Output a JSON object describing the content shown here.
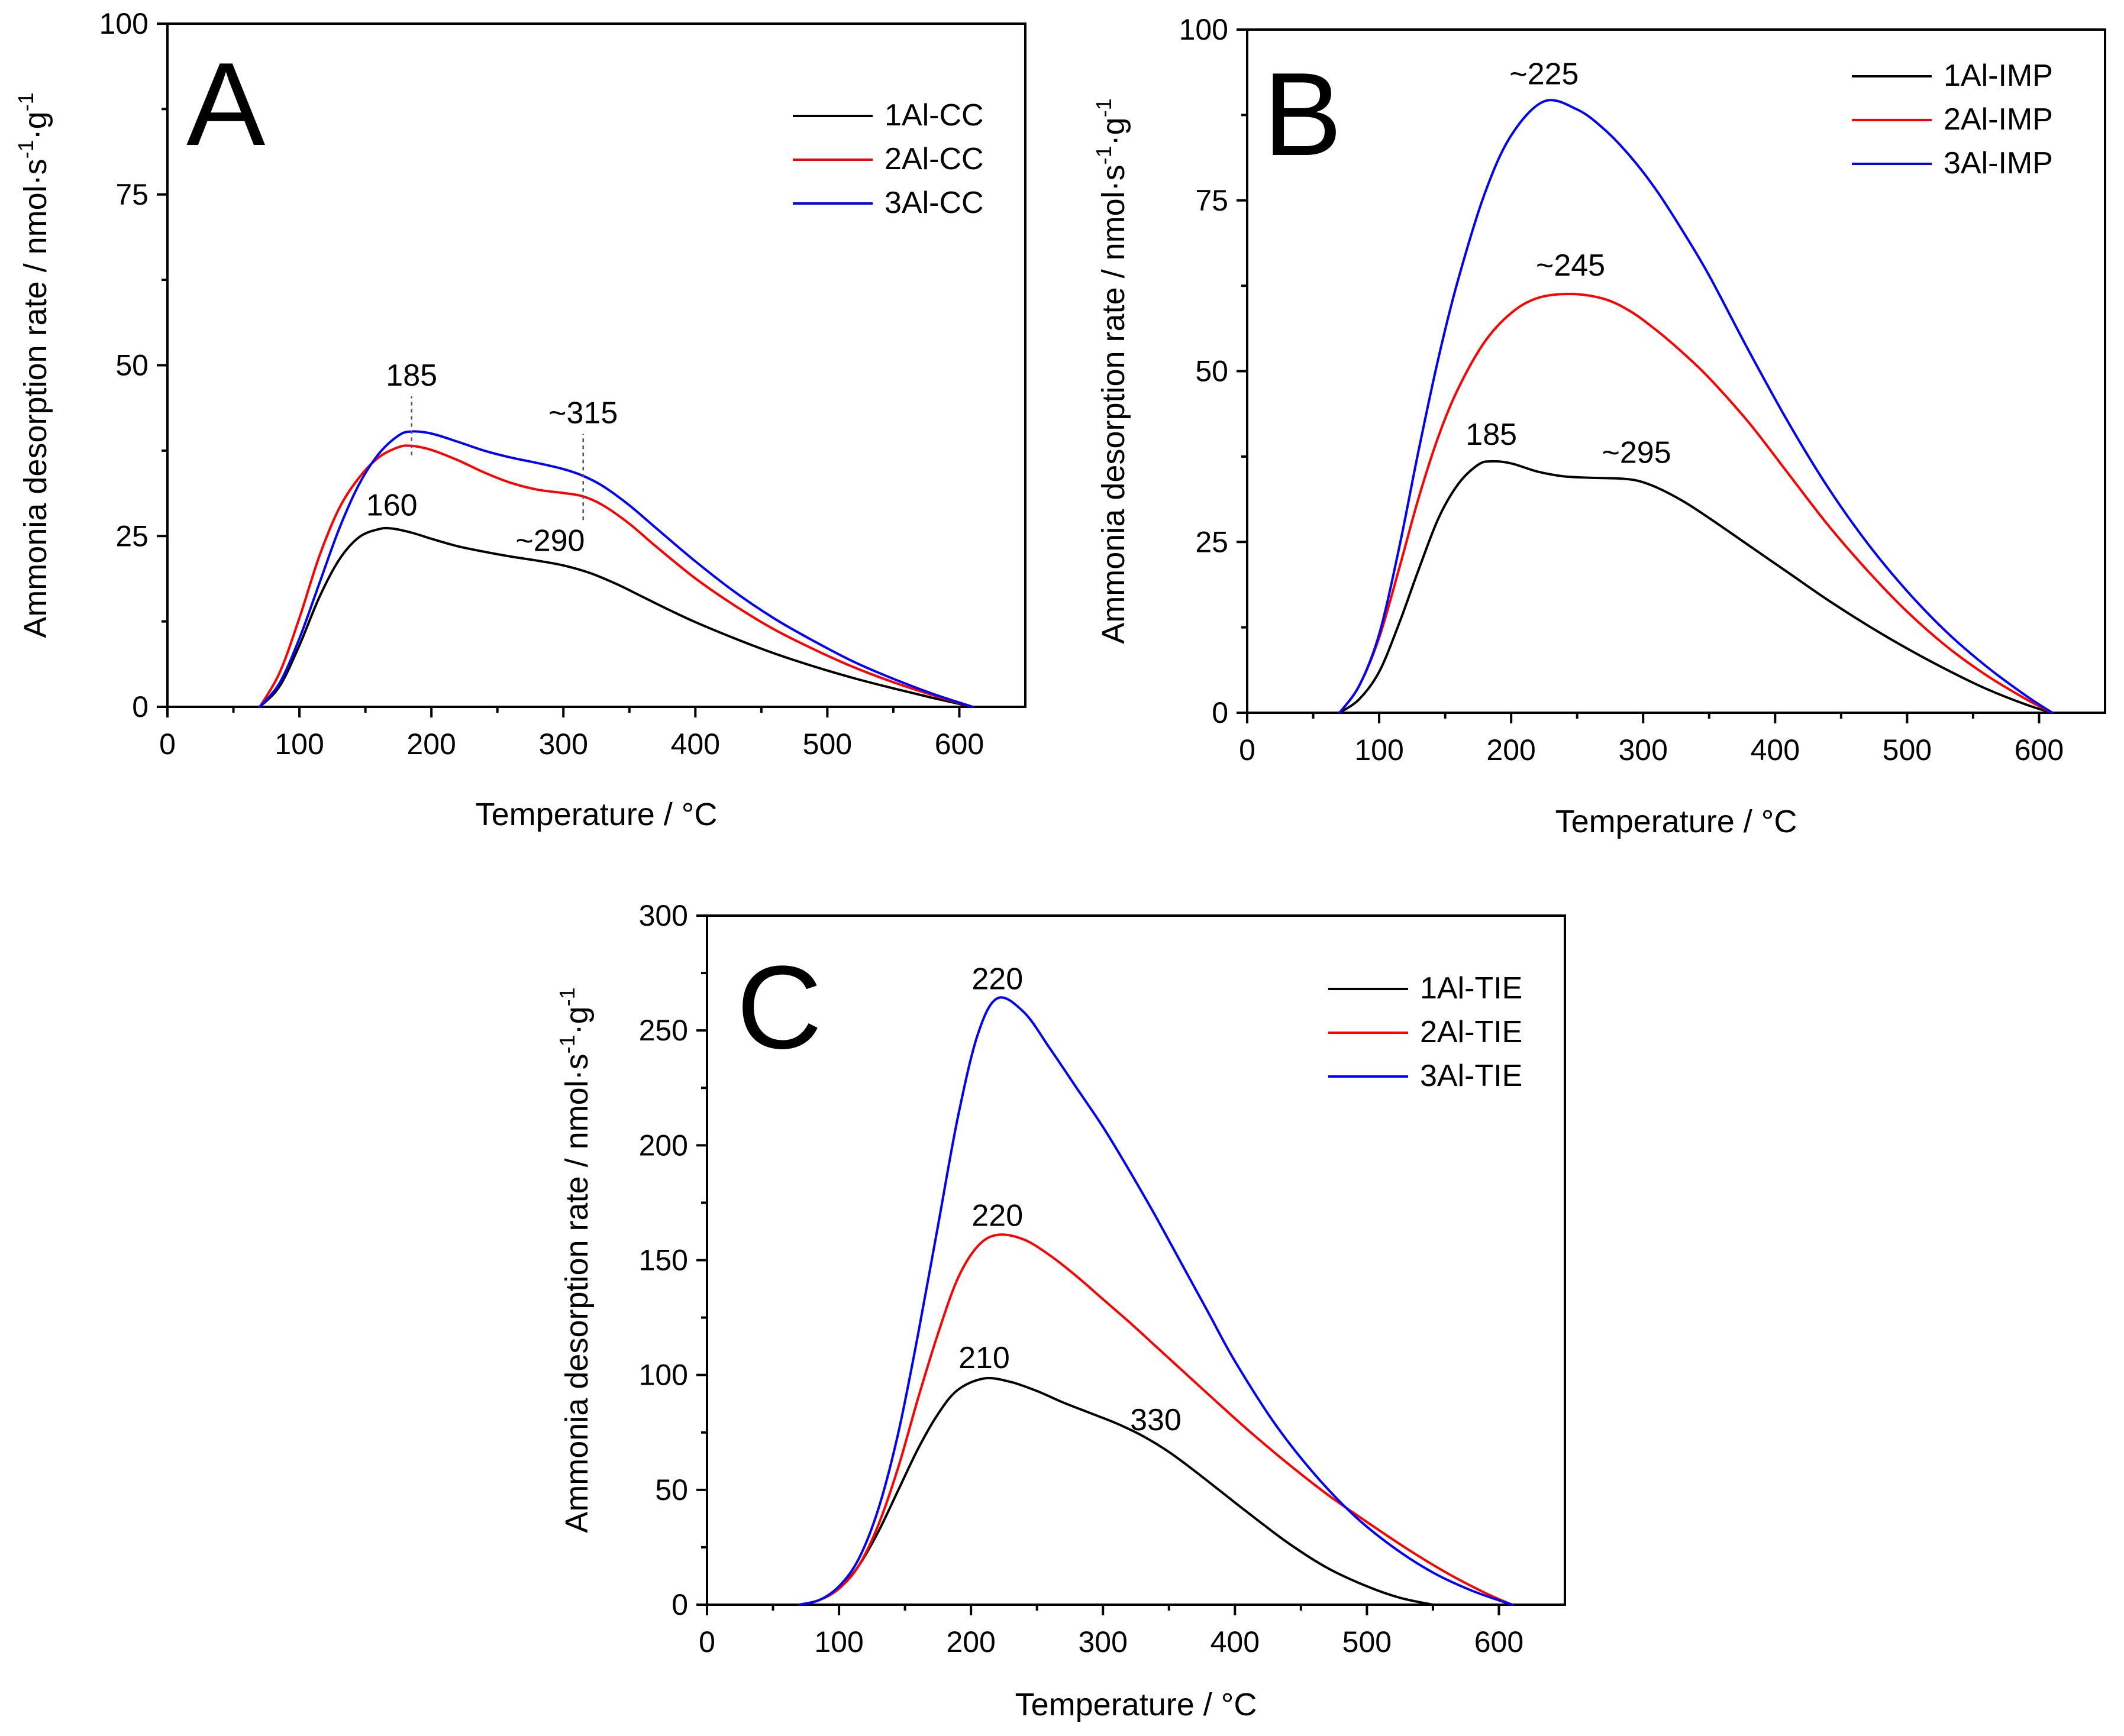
{
  "chart_data": [
    {
      "type": "line",
      "panel": "A",
      "xlabel": "Temperature / °C",
      "ylabel": "Ammonia desorption rate / nmol·s",
      "ylabel_unit": "·g",
      "ylabel_sup": "-1",
      "xlim": [
        0,
        650
      ],
      "ylim": [
        0,
        100
      ],
      "xticks": [
        0,
        100,
        200,
        300,
        400,
        500,
        600
      ],
      "yticks": [
        0,
        25,
        50,
        75,
        100
      ],
      "legend_position": "top-right",
      "series": [
        {
          "name": "1Al-CC",
          "color": "#000000",
          "x": [
            70,
            85,
            100,
            115,
            130,
            145,
            160,
            170,
            185,
            200,
            220,
            240,
            260,
            280,
            300,
            320,
            340,
            360,
            380,
            400,
            430,
            460,
            490,
            520,
            550,
            580,
            610
          ],
          "y": [
            0,
            3,
            9,
            16,
            21.5,
            24.8,
            26,
            26.1,
            25.5,
            24.6,
            23.5,
            22.7,
            22,
            21.4,
            20.7,
            19.6,
            18,
            16.1,
            14.2,
            12.4,
            10,
            7.8,
            5.9,
            4.2,
            2.7,
            1.3,
            0
          ]
        },
        {
          "name": "2Al-CC",
          "color": "#ff0000",
          "x": [
            70,
            85,
            100,
            115,
            130,
            145,
            160,
            175,
            185,
            200,
            220,
            240,
            260,
            280,
            300,
            315,
            330,
            350,
            370,
            400,
            430,
            460,
            490,
            520,
            550,
            580,
            610
          ],
          "y": [
            0,
            5,
            13,
            22,
            29,
            33.5,
            36.5,
            38,
            38.2,
            37.6,
            36.1,
            34.3,
            32.8,
            31.8,
            31.3,
            30.8,
            29.5,
            26.8,
            23.5,
            18.8,
            14.8,
            11.3,
            8.4,
            5.8,
            3.6,
            1.7,
            0
          ]
        },
        {
          "name": "3Al-CC",
          "color": "#0000ff",
          "x": [
            70,
            85,
            100,
            115,
            130,
            145,
            160,
            175,
            185,
            200,
            220,
            240,
            260,
            280,
            300,
            315,
            330,
            350,
            370,
            400,
            430,
            460,
            490,
            520,
            550,
            580,
            610
          ],
          "y": [
            0,
            3.5,
            10,
            18,
            26,
            32.5,
            37,
            39.7,
            40.3,
            40,
            38.8,
            37.5,
            36.5,
            35.7,
            34.8,
            33.8,
            32.3,
            29.5,
            26.2,
            21.3,
            16.8,
            12.9,
            9.6,
            6.6,
            4.1,
            1.9,
            0
          ]
        }
      ],
      "annotations": [
        {
          "text": "185",
          "x": 185,
          "y": 40.3,
          "label_y": 47,
          "guide": true
        },
        {
          "text": "~315",
          "x": 315,
          "y": 30.8,
          "label_y": 41.5,
          "guide": true
        },
        {
          "text": "160",
          "x": 170,
          "y": 26.1,
          "label_y": 28
        },
        {
          "text": "~290",
          "x": 290,
          "y": 21,
          "label_y": 22.8
        }
      ]
    },
    {
      "type": "line",
      "panel": "B",
      "xlabel": "Temperature / °C",
      "ylabel": "Ammonia desorption rate / nmol·s",
      "ylabel_unit": "·g",
      "ylabel_sup": "-1",
      "xlim": [
        0,
        650
      ],
      "ylim": [
        0,
        100
      ],
      "xticks": [
        0,
        100,
        200,
        300,
        400,
        500,
        600
      ],
      "yticks": [
        0,
        25,
        50,
        75,
        100
      ],
      "legend_position": "top-right",
      "series": [
        {
          "name": "1Al-IMP",
          "color": "#000000",
          "x": [
            70,
            85,
            100,
            115,
            130,
            145,
            160,
            175,
            185,
            200,
            220,
            240,
            260,
            280,
            295,
            310,
            330,
            350,
            380,
            410,
            440,
            470,
            500,
            530,
            560,
            590,
            610
          ],
          "y": [
            0,
            2,
            6,
            13,
            21,
            28.5,
            33.5,
            36.3,
            36.8,
            36.5,
            35.3,
            34.6,
            34.4,
            34.3,
            34,
            33,
            31,
            28.5,
            24.5,
            20.5,
            16.5,
            12.8,
            9.4,
            6.3,
            3.5,
            1.2,
            0
          ]
        },
        {
          "name": "2Al-IMP",
          "color": "#ff0000",
          "x": [
            70,
            85,
            100,
            115,
            130,
            145,
            160,
            180,
            200,
            220,
            245,
            270,
            290,
            310,
            330,
            350,
            380,
            410,
            440,
            470,
            500,
            530,
            560,
            590,
            610
          ],
          "y": [
            0,
            4,
            11,
            21,
            31.5,
            40.5,
            47.5,
            54.3,
            58.5,
            60.7,
            61.3,
            60.6,
            58.8,
            56,
            52.7,
            49,
            42.5,
            35,
            27.5,
            20.8,
            14.8,
            9.7,
            5.5,
            2,
            0
          ]
        },
        {
          "name": "3Al-IMP",
          "color": "#0000ff",
          "x": [
            70,
            85,
            100,
            115,
            130,
            145,
            160,
            180,
            200,
            225,
            250,
            270,
            290,
            310,
            330,
            350,
            380,
            410,
            440,
            470,
            500,
            530,
            560,
            590,
            610
          ],
          "y": [
            0,
            4,
            11.5,
            24,
            38.5,
            52,
            63.5,
            76,
            84.5,
            89.5,
            88.3,
            85.5,
            81.5,
            76.5,
            70.5,
            64,
            53,
            42.5,
            33,
            24.8,
            17.8,
            11.8,
            6.8,
            2.5,
            0
          ]
        }
      ],
      "annotations": [
        {
          "text": "~225",
          "x": 225,
          "y": 89.5,
          "label_y": 92
        },
        {
          "text": "~245",
          "x": 245,
          "y": 61.3,
          "label_y": 64
        },
        {
          "text": "185",
          "x": 185,
          "y": 36.8,
          "label_y": 39.2
        },
        {
          "text": "~295",
          "x": 295,
          "y": 34.3,
          "label_y": 36.6
        }
      ]
    },
    {
      "type": "line",
      "panel": "C",
      "xlabel": "Temperature / °C",
      "ylabel": "Ammonia desorption rate / nmol·s",
      "ylabel_unit": "·g",
      "ylabel_sup": "-1",
      "xlim": [
        0,
        650
      ],
      "ylim": [
        0,
        300
      ],
      "xticks": [
        0,
        100,
        200,
        300,
        400,
        500,
        600
      ],
      "yticks": [
        0,
        50,
        100,
        150,
        200,
        250,
        300
      ],
      "legend_position": "top-right",
      "series": [
        {
          "name": "1Al-TIE",
          "color": "#000000",
          "x": [
            70,
            85,
            100,
            115,
            130,
            145,
            160,
            175,
            190,
            210,
            230,
            250,
            270,
            290,
            310,
            330,
            350,
            370,
            390,
            410,
            440,
            470,
            500,
            525,
            550
          ],
          "y": [
            0,
            2,
            7,
            17,
            32,
            50,
            68,
            83,
            93.5,
            98.5,
            97,
            93,
            88,
            83.5,
            79,
            73.5,
            66.5,
            58,
            49,
            40,
            27,
            16,
            8,
            3,
            0
          ]
        },
        {
          "name": "2Al-TIE",
          "color": "#ff0000",
          "x": [
            70,
            85,
            100,
            115,
            130,
            145,
            160,
            175,
            190,
            205,
            220,
            240,
            260,
            280,
            300,
            320,
            340,
            360,
            380,
            410,
            440,
            470,
            500,
            530,
            560,
            590,
            610
          ],
          "y": [
            0,
            2,
            7,
            17,
            35,
            60,
            90,
            118,
            142,
            156,
            161,
            159,
            152,
            143,
            133,
            123,
            112.5,
            102,
            91.5,
            76,
            61.5,
            48,
            36,
            24.5,
            14,
            5,
            0
          ]
        },
        {
          "name": "3Al-TIE",
          "color": "#0000ff",
          "x": [
            70,
            85,
            100,
            115,
            130,
            145,
            160,
            175,
            190,
            205,
            220,
            240,
            260,
            280,
            300,
            320,
            340,
            360,
            380,
            400,
            430,
            460,
            490,
            520,
            550,
            580,
            610
          ],
          "y": [
            0,
            2,
            8,
            20,
            42,
            75,
            118,
            165,
            212,
            248,
            264,
            258,
            242,
            225,
            208,
            189,
            169,
            148,
            127,
            106,
            79,
            57,
            39,
            25,
            14,
            6,
            0
          ]
        }
      ],
      "annotations": [
        {
          "text": "220",
          "x": 220,
          "y": 264,
          "label_y": 268
        },
        {
          "text": "220",
          "x": 220,
          "y": 161,
          "label_y": 165
        },
        {
          "text": "210",
          "x": 210,
          "y": 98.5,
          "label_y": 103
        },
        {
          "text": "330",
          "x": 340,
          "y": 70,
          "label_y": 76
        }
      ]
    }
  ]
}
